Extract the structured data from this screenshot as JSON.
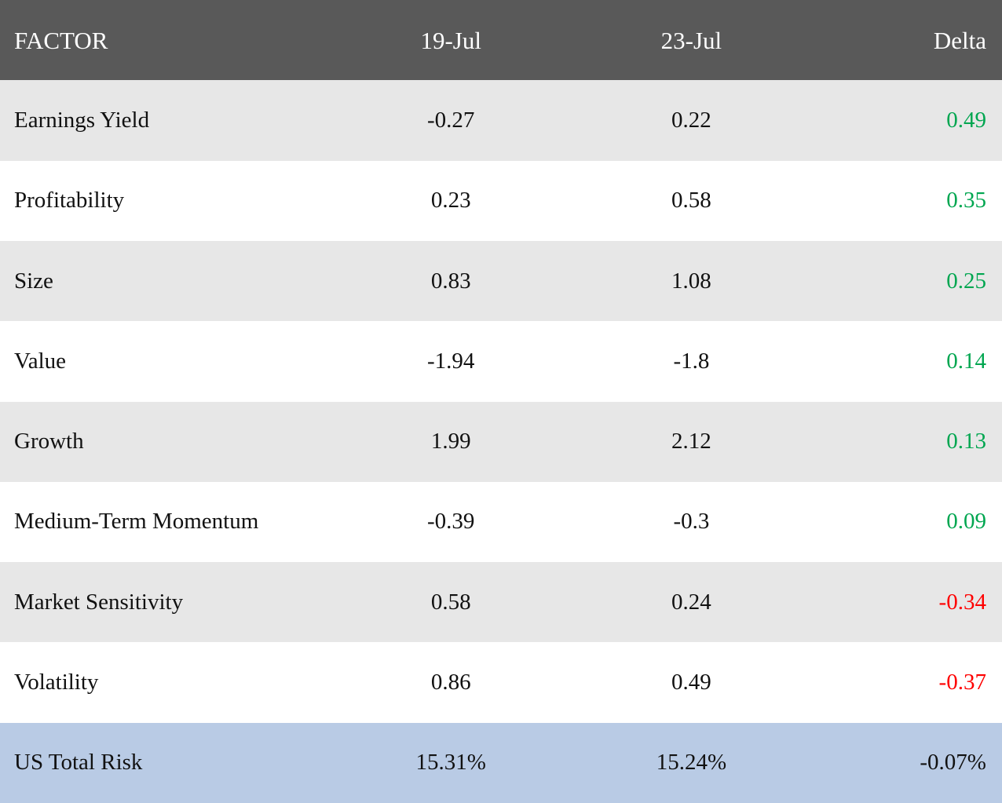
{
  "colors": {
    "header_bg": "#595959",
    "header_text": "#ffffff",
    "shaded_row_bg": "#e7e7e7",
    "plain_row_bg": "#ffffff",
    "footer_bg": "#b9cbe5",
    "positive_delta": "#00a650",
    "negative_delta": "#fe0000"
  },
  "table": {
    "columns": [
      "FACTOR",
      "19-Jul",
      "23-Jul",
      "Delta"
    ],
    "rows": [
      {
        "factor": "Earnings Yield",
        "jul19": "-0.27",
        "jul23": "0.22",
        "delta": "0.49",
        "delta_class": "pos"
      },
      {
        "factor": "Profitability",
        "jul19": "0.23",
        "jul23": "0.58",
        "delta": "0.35",
        "delta_class": "pos"
      },
      {
        "factor": "Size",
        "jul19": "0.83",
        "jul23": "1.08",
        "delta": "0.25",
        "delta_class": "pos"
      },
      {
        "factor": "Value",
        "jul19": "-1.94",
        "jul23": "-1.8",
        "delta": "0.14",
        "delta_class": "pos"
      },
      {
        "factor": "Growth",
        "jul19": "1.99",
        "jul23": "2.12",
        "delta": "0.13",
        "delta_class": "pos"
      },
      {
        "factor": "Medium-Term Momentum",
        "jul19": "-0.39",
        "jul23": "-0.3",
        "delta": "0.09",
        "delta_class": "pos"
      },
      {
        "factor": "Market Sensitivity",
        "jul19": "0.58",
        "jul23": "0.24",
        "delta": "-0.34",
        "delta_class": "neg"
      },
      {
        "factor": "Volatility",
        "jul19": "0.86",
        "jul23": "0.49",
        "delta": "-0.37",
        "delta_class": "neg"
      }
    ],
    "footer": {
      "factor": "US Total Risk",
      "jul19": "15.31%",
      "jul23": "15.24%",
      "delta": "-0.07%",
      "delta_class": "neutral"
    }
  },
  "chart_data": {
    "type": "table",
    "title": "Factor exposures comparison 19-Jul vs 23-Jul",
    "columns": [
      "FACTOR",
      "19-Jul",
      "23-Jul",
      "Delta"
    ],
    "rows": [
      [
        "Earnings Yield",
        -0.27,
        0.22,
        0.49
      ],
      [
        "Profitability",
        0.23,
        0.58,
        0.35
      ],
      [
        "Size",
        0.83,
        1.08,
        0.25
      ],
      [
        "Value",
        -1.94,
        -1.8,
        0.14
      ],
      [
        "Growth",
        1.99,
        2.12,
        0.13
      ],
      [
        "Medium-Term Momentum",
        -0.39,
        -0.3,
        0.09
      ],
      [
        "Market Sensitivity",
        0.58,
        0.24,
        -0.34
      ],
      [
        "Volatility",
        0.86,
        0.49,
        -0.37
      ],
      [
        "US Total Risk",
        "15.31%",
        "15.24%",
        "-0.07%"
      ]
    ],
    "notes": "Positive deltas rendered green, negative deltas red, footer delta black"
  }
}
